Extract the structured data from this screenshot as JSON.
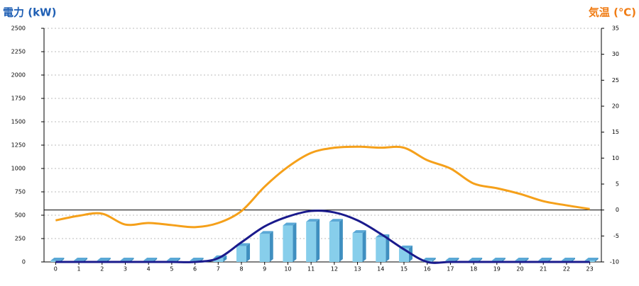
{
  "chart_data": {
    "type": "bar-line",
    "y_title": "電力 (kW)",
    "y2_title": "気温 (℃)",
    "categories": [
      "0",
      "1",
      "2",
      "3",
      "4",
      "5",
      "6",
      "7",
      "8",
      "9",
      "10",
      "11",
      "12",
      "13",
      "14",
      "15",
      "16",
      "17",
      "18",
      "19",
      "20",
      "21",
      "22",
      "23"
    ],
    "series": [
      {
        "type": "bar",
        "color": "#87ceeb",
        "values": [
          0,
          0,
          0,
          0,
          0,
          0,
          0,
          40,
          170,
          300,
          390,
          430,
          430,
          310,
          265,
          145,
          0,
          0,
          0,
          0,
          0,
          0,
          0,
          0
        ]
      },
      {
        "type": "line",
        "color": "#1a1a8c",
        "values": [
          0,
          0,
          0,
          0,
          0,
          0,
          0,
          40,
          210,
          380,
          485,
          545,
          530,
          445,
          300,
          135,
          0,
          0,
          0,
          0,
          0,
          0,
          0,
          0
        ]
      },
      {
        "type": "line",
        "axis": "y2",
        "color": "#f5a01a",
        "values": [
          -2,
          -1.1,
          -0.7,
          -2.8,
          -2.5,
          -2.9,
          -3.3,
          -2.5,
          -0.2,
          4.5,
          8.3,
          11,
          12,
          12.2,
          12,
          12,
          9.6,
          8,
          5.1,
          4.2,
          3.1,
          1.7,
          0.9,
          0.2
        ]
      }
    ],
    "ylim": [
      0,
      2500
    ],
    "yticks": [
      0,
      250,
      500,
      750,
      1000,
      1250,
      1500,
      1750,
      2000,
      2250,
      2500
    ],
    "y2lim": [
      -10,
      35
    ],
    "y2ticks": [
      -10,
      -5,
      0,
      5,
      10,
      15,
      20,
      25,
      30,
      35
    ],
    "y2_refline": 0,
    "grid": true
  }
}
